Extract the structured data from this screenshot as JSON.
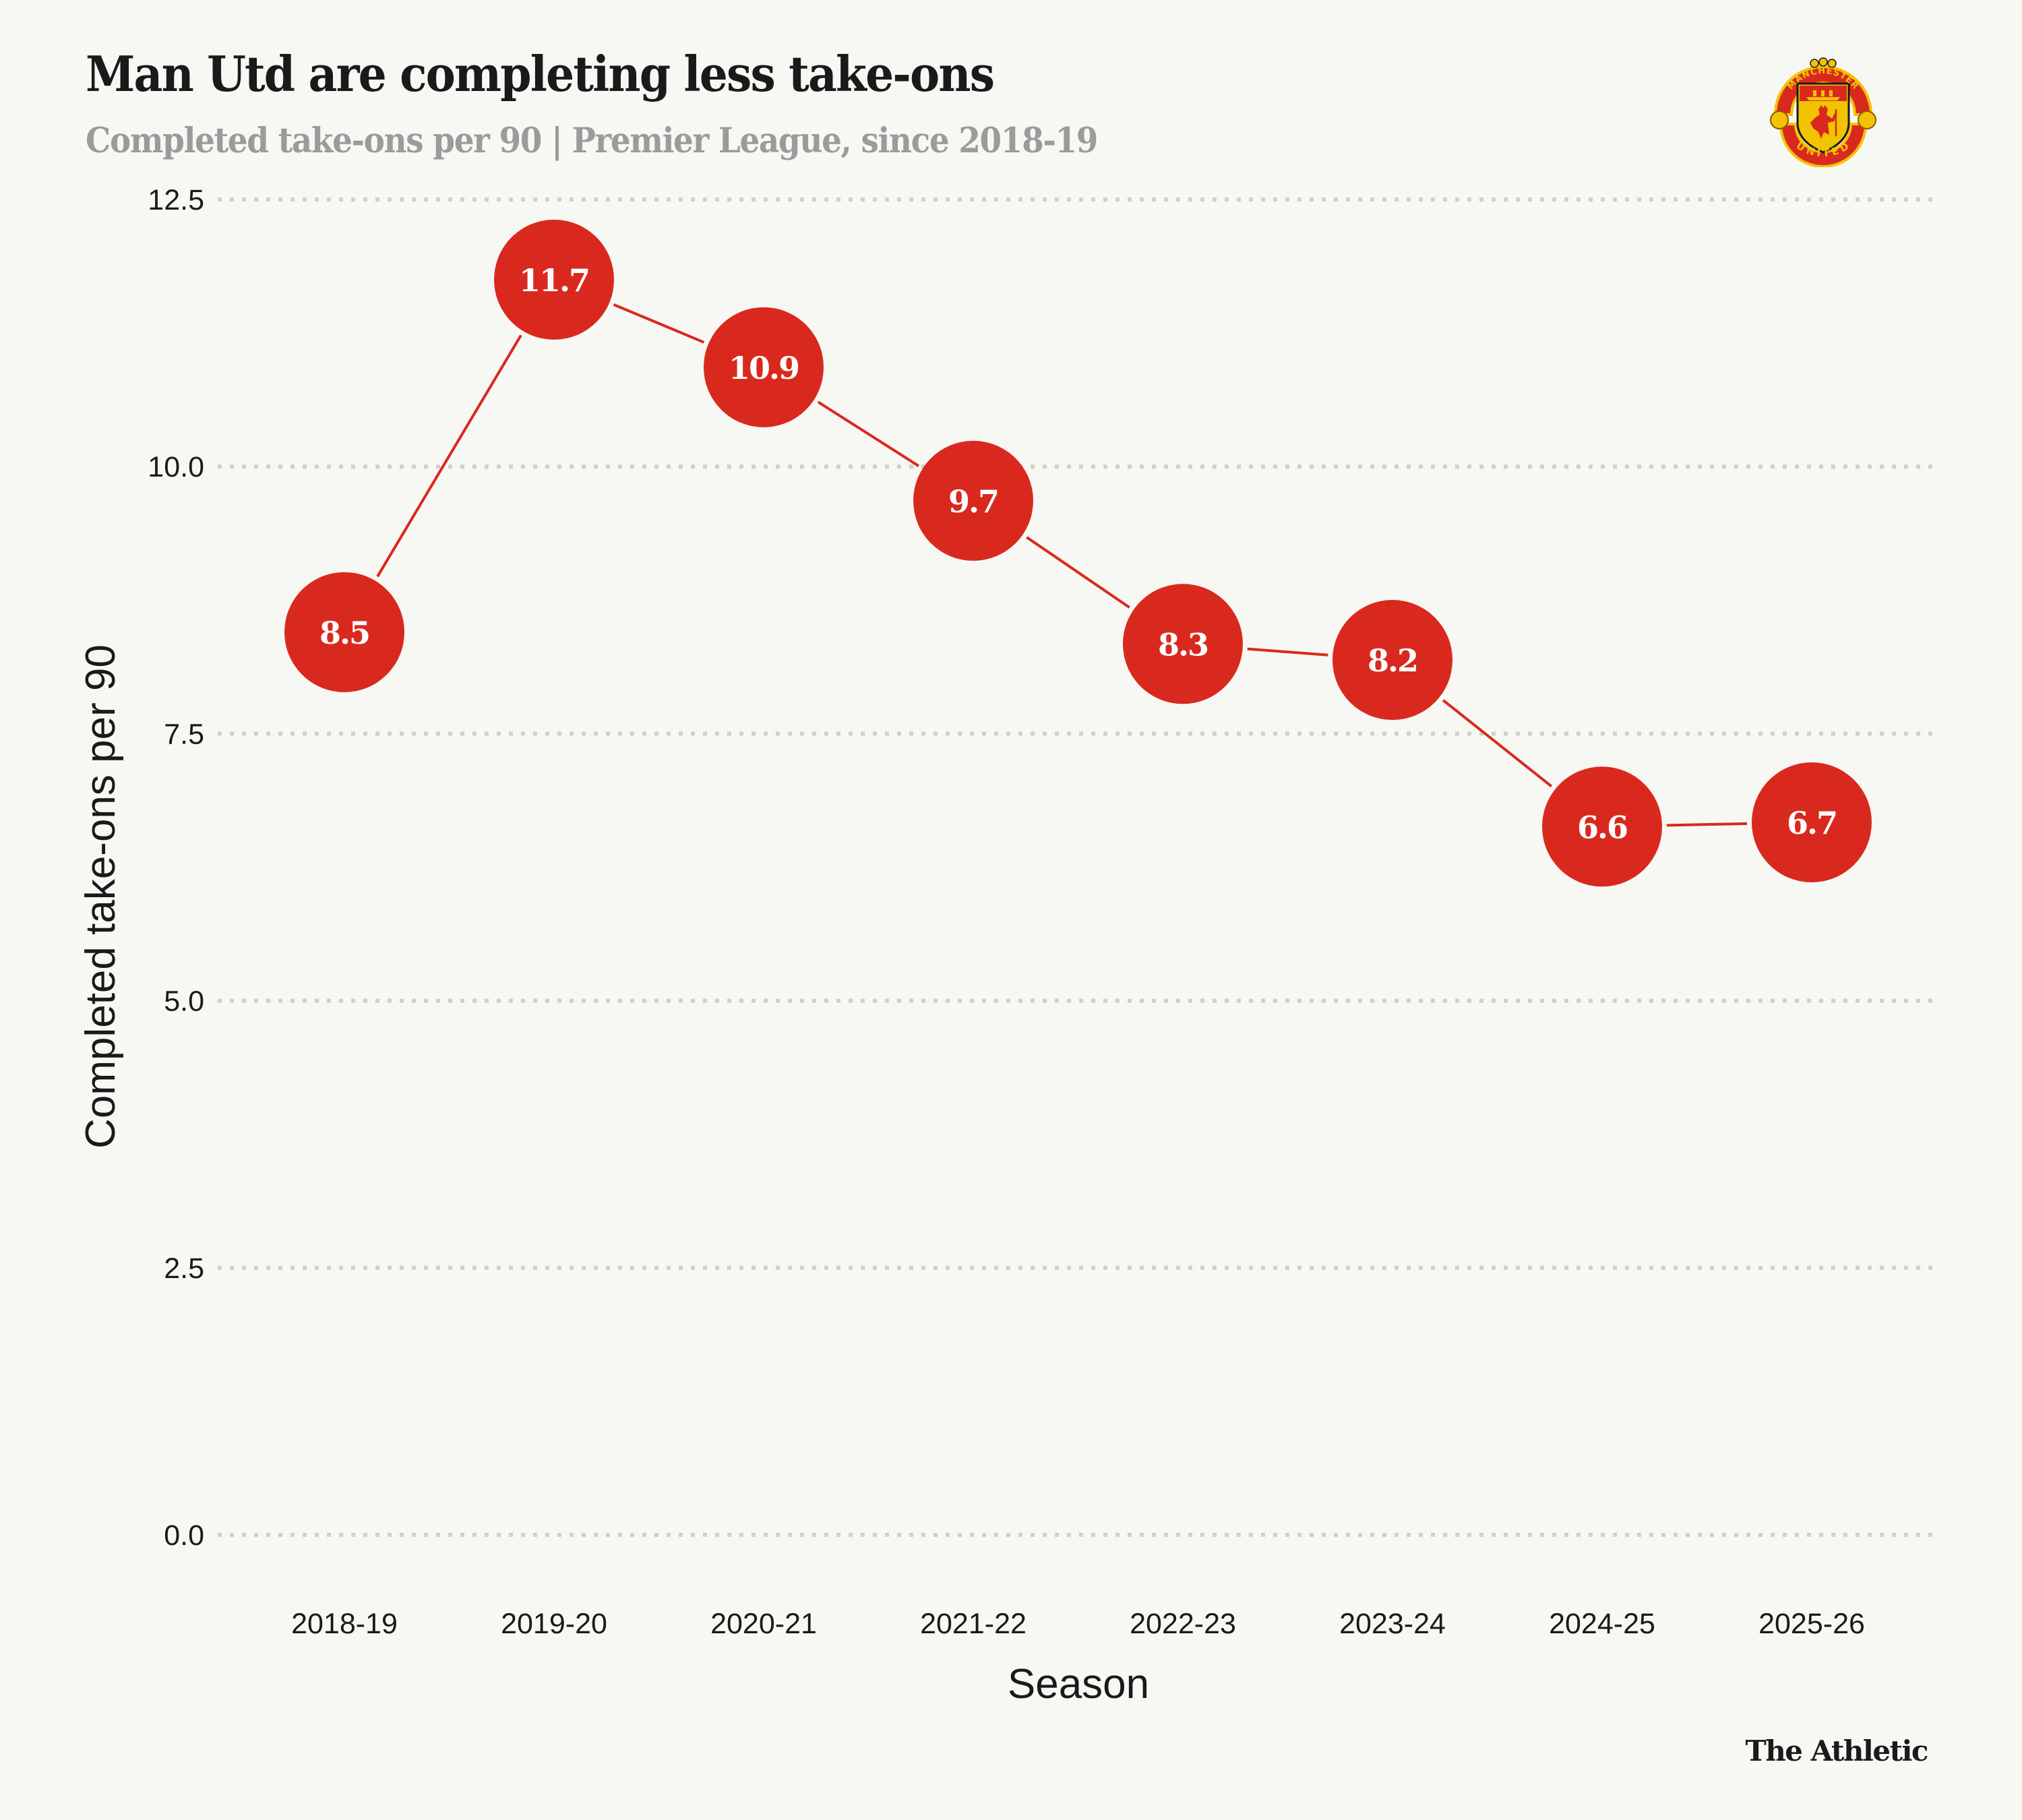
{
  "header": {
    "title": "Man Utd are completing less take-ons",
    "subtitle": "Completed take-ons per 90 | Premier League, since 2018-19"
  },
  "logo": {
    "icon": "manchester-united-crest-icon",
    "top_text": "MANCHESTER",
    "bottom_text": "UNITED"
  },
  "footer": {
    "brand": "The Athletic"
  },
  "colors": {
    "background": "#F7F7F3",
    "point": "#D9291E",
    "line": "#D9291E",
    "grid": "#CFCFCB",
    "subtitle": "#9B9B9B",
    "text": "#1A1A1A"
  },
  "chart_data": {
    "type": "line",
    "title": "Man Utd are completing less take-ons",
    "subtitle": "Completed take-ons per 90 | Premier League, since 2018-19",
    "xlabel": "Season",
    "ylabel": "Completed take-ons per 90",
    "categories": [
      "2018-19",
      "2019-20",
      "2020-21",
      "2021-22",
      "2022-23",
      "2023-24",
      "2024-25",
      "2025-26"
    ],
    "series": [
      {
        "name": "Man Utd",
        "values": [
          8.45,
          11.75,
          10.93,
          9.68,
          8.34,
          8.19,
          6.63,
          6.67
        ],
        "labels": [
          "8.5",
          "11.7",
          "10.9",
          "9.7",
          "8.3",
          "8.2",
          "6.6",
          "6.7"
        ]
      }
    ],
    "ylim": [
      0,
      12.5
    ],
    "yticks": [
      0,
      2.5,
      5,
      7.5,
      10,
      12.5
    ],
    "ytick_labels": [
      "0.0",
      "2.5",
      "5.0",
      "7.5",
      "10.0",
      "12.5"
    ],
    "grid": "horizontal-dotted",
    "legend": "none",
    "markers": "large-labeled-circles"
  }
}
